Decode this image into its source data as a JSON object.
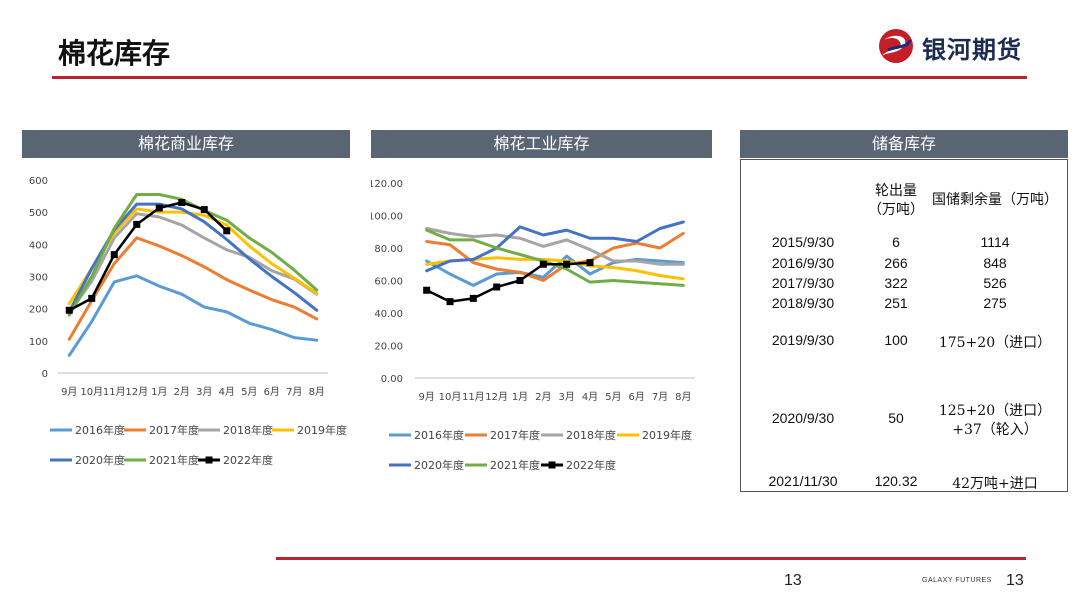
{
  "page": {
    "title": "棉花库存",
    "brand": "银河期货",
    "footer_brand": "GALAXY FUTURES",
    "page_number_center": "13",
    "page_number_right": "13"
  },
  "panels": {
    "commercial": "棉花商业库存",
    "industrial": "棉花工业库存",
    "reserve": "储备库存"
  },
  "colors": {
    "accent_red": "#b8242a",
    "panel_header": "#596573",
    "2016年度": "#5b9bd5",
    "2017年度": "#ed7d31",
    "2018年度": "#a5a5a5",
    "2019年度": "#ffc000",
    "2020年度": "#4472c4",
    "2021年度": "#70ad47",
    "2022年度": "#000000"
  },
  "chart_data": [
    {
      "type": "line",
      "categories": [
        "9月",
        "10月",
        "11月",
        "12月",
        "1月",
        "2月",
        "3月",
        "4月",
        "5月",
        "6月",
        "7月",
        "8月"
      ],
      "ylim": [
        0,
        600
      ],
      "yticks": [
        "0",
        "100",
        "200",
        "300",
        "400",
        "500",
        "600"
      ],
      "grid": false,
      "legend": "bottom",
      "series": [
        {
          "name": "2016年度",
          "values": [
            55,
            160,
            283,
            302,
            270,
            245,
            205,
            190,
            155,
            135,
            110,
            102
          ]
        },
        {
          "name": "2017年度",
          "values": [
            105,
            225,
            340,
            420,
            395,
            365,
            330,
            290,
            258,
            228,
            205,
            168
          ]
        },
        {
          "name": "2018年度",
          "values": [
            188,
            285,
            420,
            495,
            485,
            460,
            420,
            383,
            360,
            318,
            292,
            245
          ]
        },
        {
          "name": "2019年度",
          "values": [
            215,
            325,
            435,
            510,
            500,
            500,
            490,
            460,
            395,
            340,
            295,
            248
          ]
        },
        {
          "name": "2020年度",
          "values": [
            190,
            325,
            445,
            525,
            525,
            510,
            470,
            415,
            355,
            300,
            250,
            195
          ]
        },
        {
          "name": "2021年度",
          "values": [
            180,
            300,
            450,
            555,
            555,
            540,
            505,
            475,
            420,
            375,
            320,
            258
          ]
        },
        {
          "name": "2022年度",
          "values": [
            195,
            232,
            368,
            462,
            513,
            530,
            508,
            442,
            null,
            null,
            null,
            null
          ]
        }
      ]
    },
    {
      "type": "line",
      "categories": [
        "9月",
        "10月",
        "11月",
        "12月",
        "1月",
        "2月",
        "3月",
        "4月",
        "5月",
        "6月",
        "7月",
        "8月"
      ],
      "ylim": [
        0,
        120
      ],
      "yticks": [
        "0.00",
        "20.00",
        "40.00",
        "60.00",
        "80.00",
        "100.00",
        "120.00"
      ],
      "grid": false,
      "legend": "bottom",
      "series": [
        {
          "name": "2016年度",
          "values": [
            72,
            64,
            57,
            64,
            65,
            62,
            75,
            64,
            71,
            73,
            72,
            71
          ]
        },
        {
          "name": "2017年度",
          "values": [
            84,
            82,
            71,
            67,
            65,
            60,
            70,
            72,
            80,
            83,
            80,
            89
          ]
        },
        {
          "name": "2018年度",
          "values": [
            92,
            89,
            87,
            88,
            86,
            81,
            85,
            79,
            72,
            72,
            70,
            70
          ]
        },
        {
          "name": "2019年度",
          "values": [
            70,
            72,
            73,
            74,
            73,
            73,
            72,
            69,
            68,
            66,
            63,
            61
          ]
        },
        {
          "name": "2020年度",
          "values": [
            66,
            72,
            73,
            80,
            93,
            88,
            91,
            86,
            86,
            84,
            92,
            96
          ]
        },
        {
          "name": "2021年度",
          "values": [
            91,
            85,
            85,
            80,
            76,
            72,
            67,
            59,
            60,
            59,
            58,
            57
          ]
        },
        {
          "name": "2022年度",
          "values": [
            54,
            47,
            49,
            56,
            60,
            70,
            70,
            71,
            null,
            null,
            null,
            null
          ]
        }
      ]
    },
    {
      "type": "table",
      "columns": [
        "",
        "轮出量（万吨）",
        "国储剩余量（万吨）"
      ],
      "header_line1": "轮出量",
      "header_line2": "（万吨）",
      "header_remain": "国储剩余量（万吨）",
      "rows": [
        {
          "date": "2015/9/30",
          "out": "6",
          "remain": "1114"
        },
        {
          "date": "2016/9/30",
          "out": "266",
          "remain": "848"
        },
        {
          "date": "2017/9/30",
          "out": "322",
          "remain": "526"
        },
        {
          "date": "2018/9/30",
          "out": "251",
          "remain": "275"
        },
        {
          "date": "2019/9/30",
          "out": "100",
          "remain": "175+20（进口）"
        },
        {
          "date": "2020/9/30",
          "out": "50",
          "remain": "125+20（进口）",
          "remain2": "+37（轮入）"
        },
        {
          "date": "2021/11/30",
          "out": "120.32",
          "remain": "42万吨+进口"
        }
      ]
    }
  ]
}
